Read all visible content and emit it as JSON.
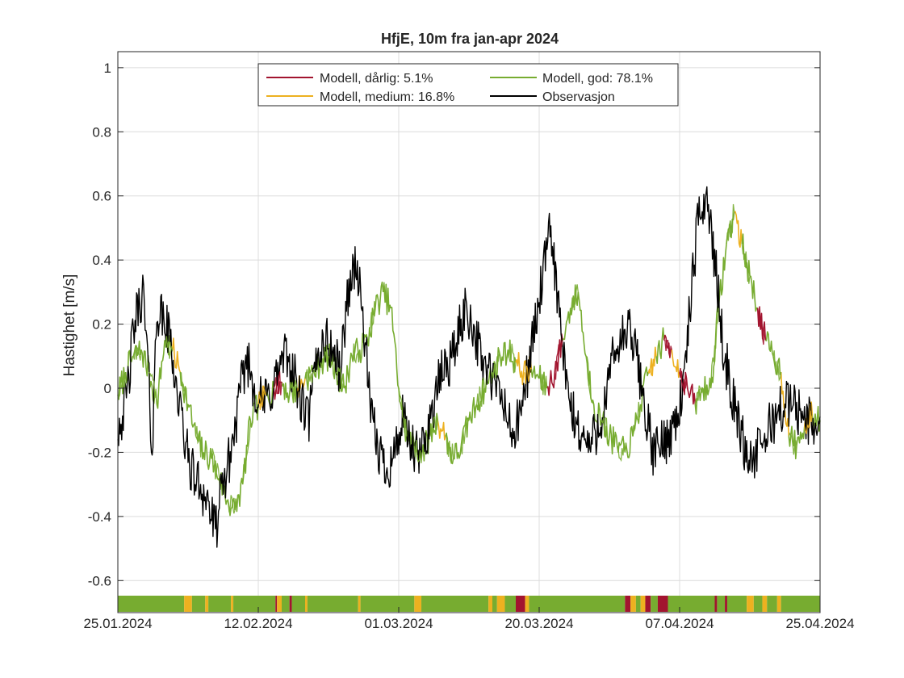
{
  "chart_data": {
    "type": "line",
    "title": "HfjE, 10m fra jan-apr 2024",
    "xlabel": "",
    "ylabel": "Hastighet [m/s]",
    "x_range": [
      "25.01.2024",
      "25.04.2024"
    ],
    "ylim": [
      -0.7,
      1.05
    ],
    "yticks": [
      "1",
      "0.8",
      "0.6",
      "0.4",
      "0.2",
      "0",
      "-0.2",
      "-0.4",
      "-0.6"
    ],
    "xticks": [
      "25.01.2024",
      "12.02.2024",
      "01.03.2024",
      "20.03.2024",
      "07.04.2024",
      "25.04.2024"
    ],
    "grid": true,
    "legend_position": "top-center",
    "legend": [
      {
        "label": "Modell, dårlig:  5.1%",
        "color": "#A2142F"
      },
      {
        "label": "Modell, god: 78.1%",
        "color": "#77AC30"
      },
      {
        "label": "Modell, medium: 16.8%",
        "color": "#EDB120"
      },
      {
        "label": "Observasjon",
        "color": "#000000"
      }
    ],
    "colors": {
      "darlig": "#A2142F",
      "medium": "#EDB120",
      "god": "#77AC30",
      "observasjon": "#000000"
    },
    "series": [
      {
        "name": "Observasjon",
        "x_day": [
          0,
          1,
          1.5,
          2,
          2.6,
          3.2,
          3.8,
          4.4,
          5,
          6,
          6.8,
          7.5,
          8.2,
          9,
          9.8,
          10.5,
          11.5,
          12.5,
          13.5,
          14.5,
          15.5,
          16.5,
          17.5,
          18.5,
          19.5,
          20.5,
          21.5,
          22.5,
          23.5,
          24.5,
          25.5,
          26.5,
          27.5,
          28.5,
          29.5,
          30.5,
          31.5,
          32.5,
          33.5,
          34.5,
          35.5,
          36.5,
          37.5,
          38.5,
          39.5,
          40.5,
          41.5,
          42.5,
          43.5,
          44.5,
          45.5,
          46.5,
          47.5,
          48.5,
          49.5,
          50.5,
          51.5,
          52.5,
          53.5,
          54.5,
          55.5,
          56.5,
          57.5,
          58.5,
          59.5,
          60.5,
          61.5,
          62.5,
          63.5,
          64.5,
          65.5,
          66.5,
          67.5,
          68.5,
          69.5,
          70.5,
          71.5,
          72.5,
          73.5,
          74.5,
          75.5,
          76.5,
          77.5,
          78.5,
          79.5,
          80.5,
          81.5,
          82.5,
          83.5,
          84.5,
          85.5,
          86.5,
          87.5,
          88.5,
          89.5,
          90
        ],
        "values": [
          -0.12,
          -0.05,
          0.05,
          0.18,
          0.25,
          0.3,
          0.1,
          -0.2,
          0.25,
          0.2,
          0.15,
          0.0,
          -0.1,
          -0.22,
          -0.28,
          -0.3,
          -0.35,
          -0.45,
          -0.3,
          -0.2,
          -0.05,
          0.1,
          0.0,
          -0.05,
          -0.02,
          0.05,
          0.1,
          0.05,
          -0.05,
          -0.1,
          0.1,
          0.15,
          0.12,
          0.05,
          0.3,
          0.4,
          0.2,
          -0.1,
          -0.2,
          -0.25,
          -0.2,
          -0.1,
          -0.18,
          -0.22,
          -0.15,
          -0.05,
          0.05,
          0.08,
          0.15,
          0.25,
          0.2,
          0.1,
          0.05,
          0.0,
          -0.05,
          -0.15,
          -0.1,
          0.05,
          0.2,
          0.35,
          0.5,
          0.25,
          0.0,
          -0.1,
          -0.15,
          -0.18,
          -0.12,
          -0.05,
          0.1,
          0.15,
          0.18,
          0.1,
          -0.05,
          -0.2,
          -0.18,
          -0.15,
          -0.1,
          0.0,
          0.3,
          0.55,
          0.6,
          0.4,
          0.15,
          0.0,
          -0.1,
          -0.2,
          -0.22,
          -0.18,
          -0.12,
          -0.08,
          -0.05,
          -0.05,
          -0.08,
          -0.1,
          -0.12,
          -0.1
        ]
      },
      {
        "name": "Modell",
        "x_day": [
          0,
          1,
          2,
          3,
          4,
          5,
          6,
          7,
          8,
          9,
          10,
          11,
          12,
          13,
          14,
          15,
          16,
          17,
          18,
          19,
          20,
          21,
          22,
          23,
          24,
          25,
          26,
          27,
          28,
          29,
          30,
          31,
          32,
          33,
          34,
          35,
          36,
          37,
          38,
          39,
          40,
          41,
          42,
          43,
          44,
          45,
          46,
          47,
          48,
          49,
          50,
          51,
          52,
          53,
          54,
          55,
          56,
          57,
          58,
          59,
          60,
          61,
          62,
          63,
          64,
          65,
          66,
          67,
          68,
          69,
          70,
          71,
          72,
          73,
          74,
          75,
          76,
          77,
          78,
          79,
          80,
          81,
          82,
          83,
          84,
          85,
          86,
          87,
          88,
          89,
          90
        ],
        "values": [
          -0.02,
          0.05,
          0.1,
          0.12,
          0.05,
          -0.05,
          0.15,
          0.12,
          0.05,
          -0.05,
          -0.15,
          -0.2,
          -0.22,
          -0.28,
          -0.35,
          -0.38,
          -0.3,
          -0.1,
          -0.05,
          -0.02,
          0.0,
          0.02,
          -0.02,
          0.0,
          0.03,
          0.05,
          0.08,
          0.1,
          0.05,
          0.0,
          0.1,
          0.12,
          0.15,
          0.25,
          0.3,
          0.25,
          0.0,
          -0.15,
          -0.18,
          -0.2,
          -0.15,
          -0.1,
          -0.15,
          -0.22,
          -0.18,
          -0.1,
          -0.05,
          0.0,
          0.05,
          0.1,
          0.12,
          0.08,
          0.05,
          0.06,
          0.03,
          0.0,
          0.05,
          0.15,
          0.25,
          0.3,
          0.1,
          -0.05,
          -0.1,
          -0.15,
          -0.18,
          -0.2,
          -0.15,
          -0.05,
          0.05,
          0.1,
          0.15,
          0.12,
          0.05,
          0.0,
          -0.05,
          0.0,
          0.0,
          0.25,
          0.45,
          0.55,
          0.45,
          0.35,
          0.25,
          0.15,
          0.1,
          0.05,
          -0.15,
          -0.18,
          -0.12,
          -0.08,
          -0.1
        ],
        "segment_class": [
          "god",
          "god",
          "god",
          "god",
          "god",
          "god",
          "god",
          "medium",
          "god",
          "god",
          "god",
          "god",
          "god",
          "god",
          "god",
          "god",
          "god",
          "god",
          "medium",
          "god",
          "darlig",
          "god",
          "god",
          "medium",
          "god",
          "god",
          "god",
          "god",
          "god",
          "god",
          "god",
          "god",
          "god",
          "god",
          "god",
          "god",
          "god",
          "god",
          "god",
          "god",
          "god",
          "medium",
          "god",
          "god",
          "god",
          "god",
          "god",
          "god",
          "god",
          "god",
          "god",
          "medium",
          "medium",
          "god",
          "god",
          "darlig",
          "darlig",
          "god",
          "god",
          "god",
          "god",
          "god",
          "god",
          "god",
          "god",
          "god",
          "god",
          "god",
          "medium",
          "god",
          "darlig",
          "medium",
          "darlig",
          "darlig",
          "god",
          "god",
          "god",
          "god",
          "god",
          "medium",
          "god",
          "god",
          "darlig",
          "god",
          "god",
          "medium",
          "god",
          "god",
          "medium",
          "god",
          "god"
        ]
      }
    ],
    "class_strip": [
      {
        "from": 0,
        "to": 8.5,
        "class": "god"
      },
      {
        "from": 8.5,
        "to": 9.5,
        "class": "medium"
      },
      {
        "from": 9.5,
        "to": 11.2,
        "class": "god"
      },
      {
        "from": 11.2,
        "to": 11.6,
        "class": "medium"
      },
      {
        "from": 11.6,
        "to": 14.5,
        "class": "god"
      },
      {
        "from": 14.5,
        "to": 14.8,
        "class": "medium"
      },
      {
        "from": 14.8,
        "to": 20.2,
        "class": "god"
      },
      {
        "from": 20.2,
        "to": 20.4,
        "class": "darlig"
      },
      {
        "from": 20.4,
        "to": 21.0,
        "class": "medium"
      },
      {
        "from": 21.0,
        "to": 22.0,
        "class": "god"
      },
      {
        "from": 22.0,
        "to": 22.3,
        "class": "darlig"
      },
      {
        "from": 22.3,
        "to": 24.0,
        "class": "god"
      },
      {
        "from": 24.0,
        "to": 24.3,
        "class": "medium"
      },
      {
        "from": 24.3,
        "to": 30.8,
        "class": "god"
      },
      {
        "from": 30.8,
        "to": 31.1,
        "class": "medium"
      },
      {
        "from": 31.1,
        "to": 38.0,
        "class": "god"
      },
      {
        "from": 38.0,
        "to": 38.9,
        "class": "medium"
      },
      {
        "from": 38.9,
        "to": 47.5,
        "class": "god"
      },
      {
        "from": 47.5,
        "to": 48.0,
        "class": "medium"
      },
      {
        "from": 48.0,
        "to": 48.6,
        "class": "god"
      },
      {
        "from": 48.6,
        "to": 49.6,
        "class": "medium"
      },
      {
        "from": 49.6,
        "to": 51.0,
        "class": "god"
      },
      {
        "from": 51.0,
        "to": 52.2,
        "class": "darlig"
      },
      {
        "from": 52.2,
        "to": 52.7,
        "class": "medium"
      },
      {
        "from": 52.7,
        "to": 65.0,
        "class": "god"
      },
      {
        "from": 65.0,
        "to": 65.7,
        "class": "darlig"
      },
      {
        "from": 65.7,
        "to": 66.4,
        "class": "medium"
      },
      {
        "from": 66.4,
        "to": 67.0,
        "class": "god"
      },
      {
        "from": 67.0,
        "to": 67.6,
        "class": "medium"
      },
      {
        "from": 67.6,
        "to": 68.3,
        "class": "darlig"
      },
      {
        "from": 68.3,
        "to": 69.2,
        "class": "god"
      },
      {
        "from": 69.2,
        "to": 70.5,
        "class": "darlig"
      },
      {
        "from": 70.5,
        "to": 76.5,
        "class": "god"
      },
      {
        "from": 76.5,
        "to": 76.8,
        "class": "darlig"
      },
      {
        "from": 76.8,
        "to": 77.8,
        "class": "god"
      },
      {
        "from": 77.8,
        "to": 78.1,
        "class": "darlig"
      },
      {
        "from": 78.1,
        "to": 80.6,
        "class": "god"
      },
      {
        "from": 80.6,
        "to": 81.5,
        "class": "medium"
      },
      {
        "from": 81.5,
        "to": 82.6,
        "class": "god"
      },
      {
        "from": 82.6,
        "to": 83.2,
        "class": "medium"
      },
      {
        "from": 83.2,
        "to": 84.5,
        "class": "god"
      },
      {
        "from": 84.5,
        "to": 85.0,
        "class": "medium"
      },
      {
        "from": 85.0,
        "to": 90,
        "class": "god"
      }
    ]
  }
}
